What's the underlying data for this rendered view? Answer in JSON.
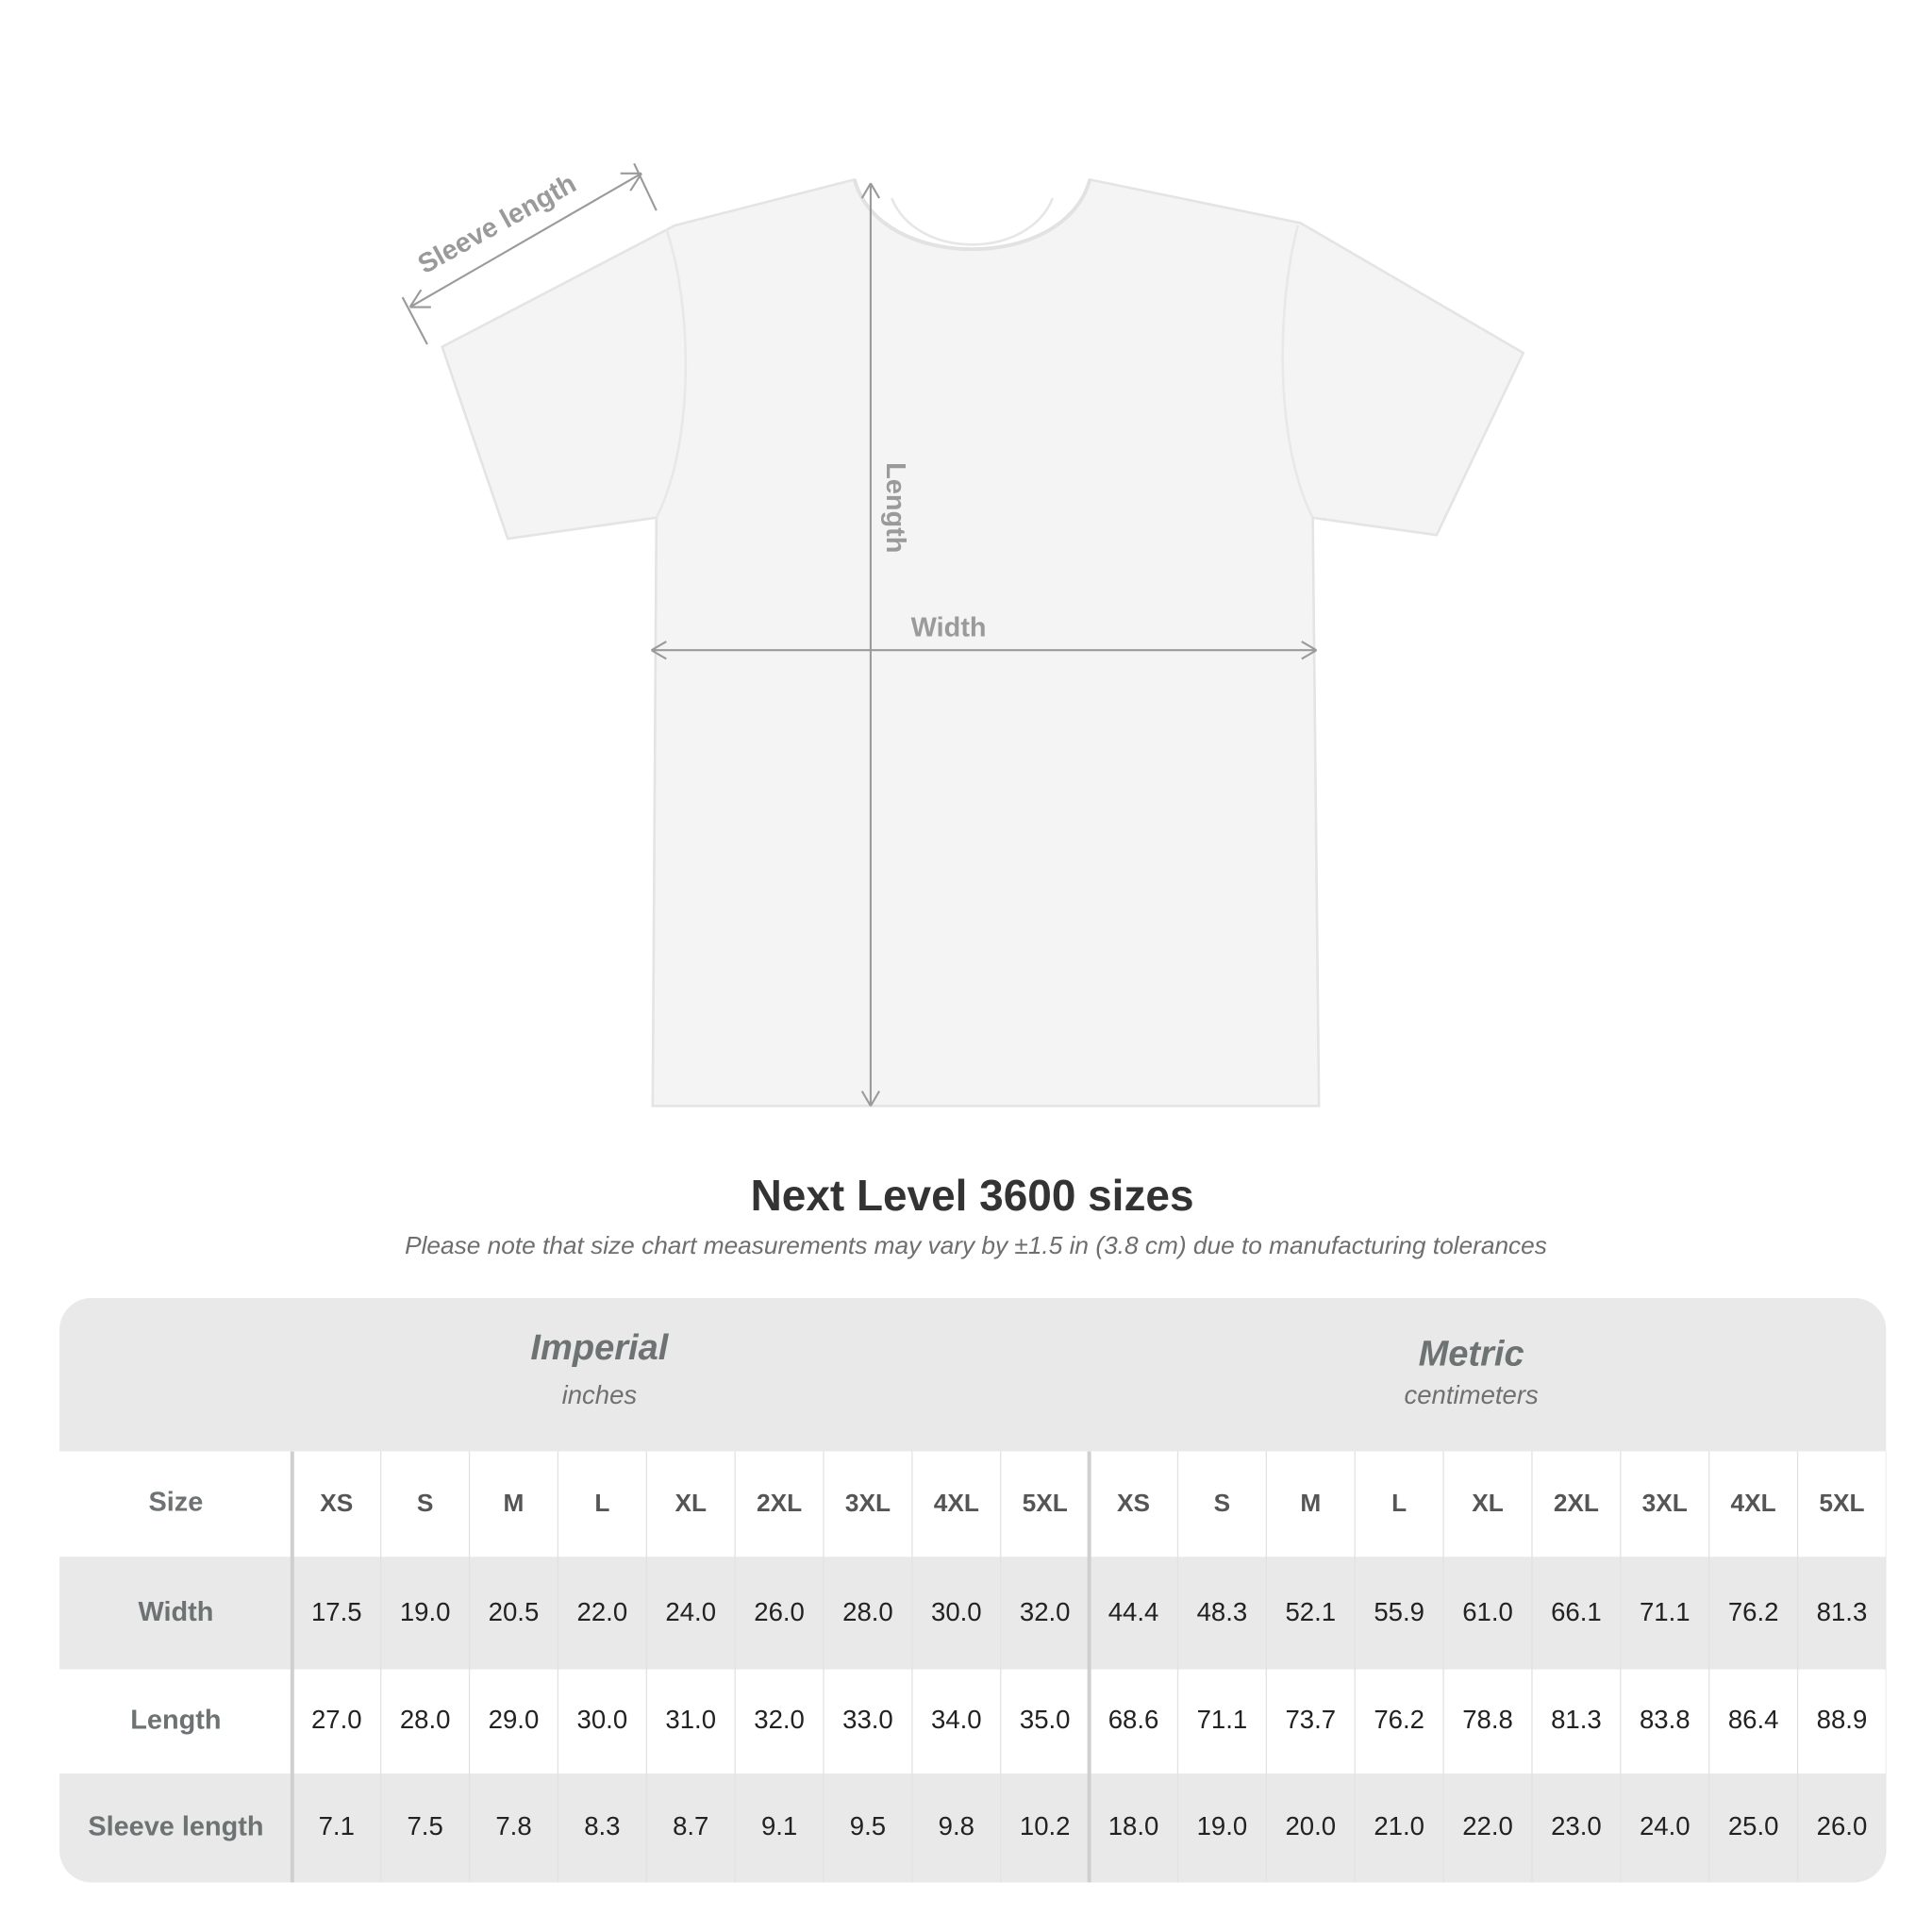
{
  "diagram": {
    "sleeve_label": "Sleeve length",
    "length_label": "Length",
    "width_label": "Width"
  },
  "title": "Next Level 3600 sizes",
  "note": "Please note that size chart measurements may vary by ±1.5 in (3.8 cm) due to manufacturing tolerances",
  "table": {
    "groups": [
      {
        "name": "Imperial",
        "unit": "inches"
      },
      {
        "name": "Metric",
        "unit": "centimeters"
      }
    ],
    "header_row": {
      "label": "Size",
      "cells": [
        "XS",
        "S",
        "M",
        "L",
        "XL",
        "2XL",
        "3XL",
        "4XL",
        "5XL",
        "XS",
        "S",
        "M",
        "L",
        "XL",
        "2XL",
        "3XL",
        "4XL",
        "5XL"
      ]
    },
    "rows": [
      {
        "label": "Width",
        "cells": [
          "17.5",
          "19.0",
          "20.5",
          "22.0",
          "24.0",
          "26.0",
          "28.0",
          "30.0",
          "32.0",
          "44.4",
          "48.3",
          "52.1",
          "55.9",
          "61.0",
          "66.1",
          "71.1",
          "76.2",
          "81.3"
        ]
      },
      {
        "label": "Length",
        "cells": [
          "27.0",
          "28.0",
          "29.0",
          "30.0",
          "31.0",
          "32.0",
          "33.0",
          "34.0",
          "35.0",
          "68.6",
          "71.1",
          "73.7",
          "76.2",
          "78.8",
          "81.3",
          "83.8",
          "86.4",
          "88.9"
        ]
      },
      {
        "label": "Sleeve length",
        "cells": [
          "7.1",
          "7.5",
          "7.8",
          "8.3",
          "8.7",
          "9.1",
          "9.5",
          "9.8",
          "10.2",
          "18.0",
          "19.0",
          "20.0",
          "21.0",
          "22.0",
          "23.0",
          "24.0",
          "25.0",
          "26.0"
        ]
      }
    ]
  }
}
